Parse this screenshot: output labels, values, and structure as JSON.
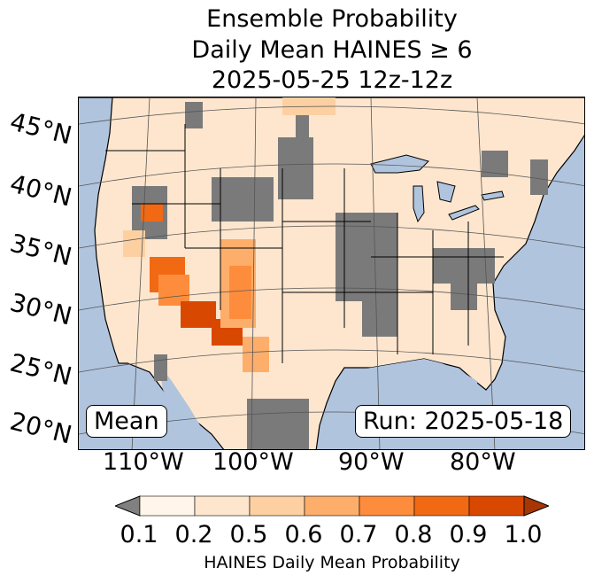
{
  "title": {
    "line1": "Ensemble Probability",
    "line2": "Daily Mean HAINES ≥ 6",
    "line3": "2025-05-25 12z-12z"
  },
  "lat_labels": [
    "45°N",
    "40°N",
    "35°N",
    "30°N",
    "25°N",
    "20°N"
  ],
  "lon_labels": [
    "110°W",
    "100°W",
    "90°W",
    "80°W"
  ],
  "boxes": {
    "stat": "Mean",
    "run": "Run: 2025-05-18"
  },
  "colorbar": {
    "ticks": [
      "0.1",
      "0.2",
      "0.5",
      "0.6",
      "0.7",
      "0.8",
      "0.9",
      "1.0"
    ],
    "colors": [
      "#fff5eb",
      "#fee6ce",
      "#fdd0a2",
      "#fdae6b",
      "#fd8d3c",
      "#f16913",
      "#d94801",
      "#a63603"
    ],
    "under_color": "#808080",
    "label": "HAINES Daily Mean Probability"
  },
  "colors": {
    "ocean": "#b0c4de",
    "lake": "#b0c4de",
    "land_default": "#fee6ce",
    "masked": "#7a7a7a"
  }
}
